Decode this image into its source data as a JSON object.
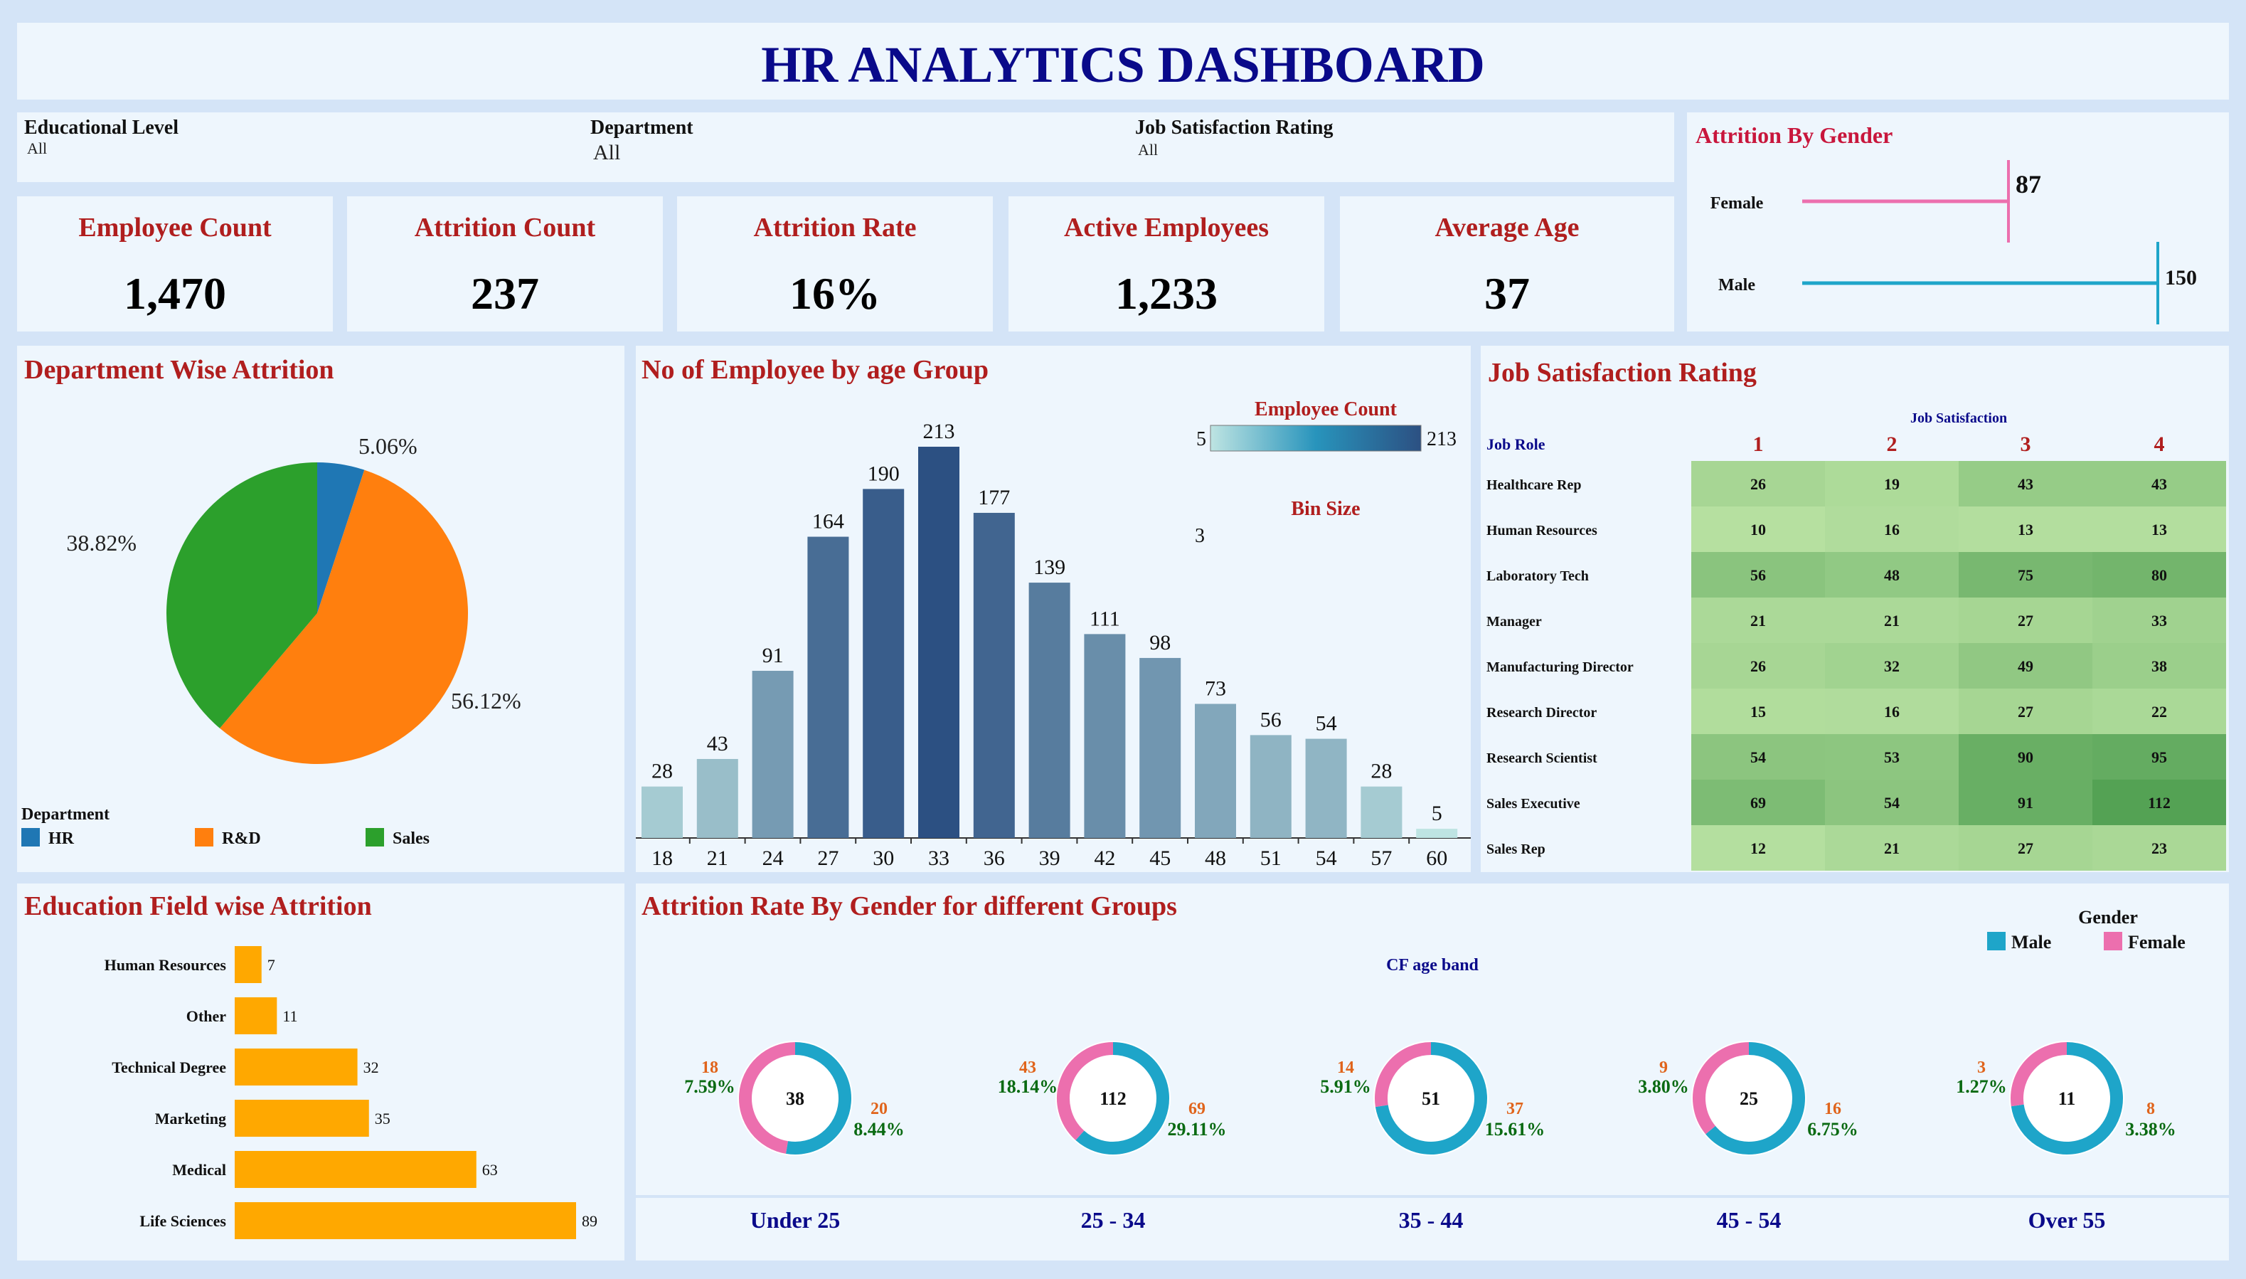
{
  "header": {
    "title": "HR ANALYTICS DASHBOARD"
  },
  "filters": [
    {
      "label": "Educational Level",
      "value": "All"
    },
    {
      "label": "Department",
      "value": "All"
    },
    {
      "label": "Job Satisfaction Rating",
      "value": "All"
    }
  ],
  "kpis": [
    {
      "label": "Employee Count",
      "value": "1,470"
    },
    {
      "label": "Attrition Count",
      "value": "237"
    },
    {
      "label": "Attrition Rate",
      "value": "16%"
    },
    {
      "label": "Active Employees",
      "value": "1,233"
    },
    {
      "label": "Average Age",
      "value": "37"
    }
  ],
  "colors": {
    "title_blue": "#0a0a8a",
    "panel_title_red": "#b01e1e",
    "hr": "#1f77b4",
    "rd": "#ff7f0e",
    "sales": "#2ca02c",
    "male": "#1ea5c9",
    "female": "#ec6fae",
    "edu_bar": "#ffa800",
    "donut_count": "#e0641b",
    "donut_pct": "#0a6a12"
  },
  "chart_data": [
    {
      "id": "attrition_by_gender",
      "type": "bar",
      "title": "Attrition By Gender",
      "categories": [
        "Female",
        "Male"
      ],
      "values": [
        87,
        150
      ],
      "labels": [
        "87",
        "150"
      ]
    },
    {
      "id": "department_wise_attrition",
      "type": "pie",
      "title": "Department Wise Attrition",
      "legend_title": "Department",
      "legend_position": "bottom",
      "slices": [
        {
          "name": "HR",
          "value": 5.06,
          "label": "5.06%"
        },
        {
          "name": "R&D",
          "value": 56.12,
          "label": "56.12%"
        },
        {
          "name": "Sales",
          "value": 38.82,
          "label": "38.82%"
        }
      ]
    },
    {
      "id": "employees_by_age_group",
      "type": "bar",
      "title": "No of Employee by age Group",
      "categories": [
        "18",
        "21",
        "24",
        "27",
        "30",
        "33",
        "36",
        "39",
        "42",
        "45",
        "48",
        "51",
        "54",
        "57",
        "60"
      ],
      "values": [
        28,
        43,
        91,
        164,
        190,
        213,
        177,
        139,
        111,
        98,
        73,
        56,
        54,
        28,
        5
      ],
      "color_legend": {
        "title": "Employee Count",
        "min": 5,
        "max": 213,
        "min_label": "5",
        "max_label": "213"
      },
      "parameter": {
        "label": "Bin Size",
        "value": "3"
      }
    },
    {
      "id": "job_satisfaction_rating",
      "type": "heatmap",
      "title": "Job Satisfaction Rating",
      "column_header": "Job Satisfaction",
      "row_header": "Job Role",
      "columns": [
        "1",
        "2",
        "3",
        "4"
      ],
      "rows": [
        {
          "role": "Healthcare Rep",
          "values": [
            26,
            19,
            43,
            43
          ]
        },
        {
          "role": "Human Resources",
          "values": [
            10,
            16,
            13,
            13
          ]
        },
        {
          "role": "Laboratory Tech",
          "values": [
            56,
            48,
            75,
            80
          ]
        },
        {
          "role": "Manager",
          "values": [
            21,
            21,
            27,
            33
          ]
        },
        {
          "role": "Manufacturing Director",
          "values": [
            26,
            32,
            49,
            38
          ]
        },
        {
          "role": "Research Director",
          "values": [
            15,
            16,
            27,
            22
          ]
        },
        {
          "role": "Research Scientist",
          "values": [
            54,
            53,
            90,
            95
          ]
        },
        {
          "role": "Sales Executive",
          "values": [
            69,
            54,
            91,
            112
          ]
        },
        {
          "role": "Sales Rep",
          "values": [
            12,
            21,
            27,
            23
          ]
        }
      ]
    },
    {
      "id": "education_field_attrition",
      "type": "bar",
      "orientation": "horizontal",
      "title": "Education Field wise Attrition",
      "categories": [
        "Human Resources",
        "Other",
        "Technical Degree",
        "Marketing",
        "Medical",
        "Life Sciences"
      ],
      "values": [
        7,
        11,
        32,
        35,
        63,
        89
      ]
    },
    {
      "id": "attrition_rate_gender_groups",
      "type": "pie",
      "subtype": "donut",
      "title": "Attrition Rate By Gender for different Groups",
      "legend_title": "Gender",
      "legend": [
        "Male",
        "Female"
      ],
      "header": "CF age band",
      "groups": [
        {
          "band": "Under 25",
          "total": "38",
          "female_count": "18",
          "female_pct": "7.59%",
          "male_count": "20",
          "male_pct": "8.44%",
          "female": 18,
          "male": 20
        },
        {
          "band": "25 - 34",
          "total": "112",
          "female_count": "43",
          "female_pct": "18.14%",
          "male_count": "69",
          "male_pct": "29.11%",
          "female": 43,
          "male": 69
        },
        {
          "band": "35 - 44",
          "total": "51",
          "female_count": "14",
          "female_pct": "5.91%",
          "male_count": "37",
          "male_pct": "15.61%",
          "female": 14,
          "male": 37
        },
        {
          "band": "45 - 54",
          "total": "25",
          "female_count": "9",
          "female_pct": "3.80%",
          "male_count": "16",
          "male_pct": "6.75%",
          "female": 9,
          "male": 16
        },
        {
          "band": "Over 55",
          "total": "11",
          "female_count": "3",
          "female_pct": "1.27%",
          "male_count": "8",
          "male_pct": "3.38%",
          "female": 3,
          "male": 8
        }
      ]
    }
  ]
}
